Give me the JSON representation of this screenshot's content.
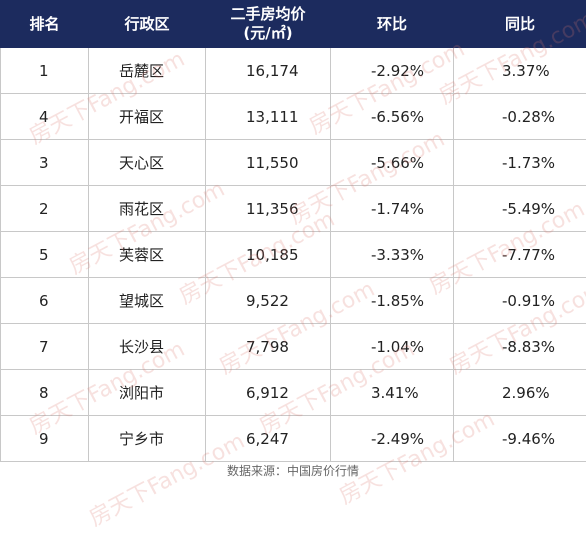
{
  "table": {
    "header": [
      "排名",
      "行政区",
      "二手房均价",
      "环比",
      "同比"
    ],
    "header_unit": "(元/㎡)",
    "rows": [
      [
        "1",
        "岳麓区",
        "16,174",
        "-2.92%",
        "3.37%"
      ],
      [
        "4",
        "开福区",
        "13,111",
        "-6.56%",
        "-0.28%"
      ],
      [
        "3",
        "天心区",
        "11,550",
        "-5.66%",
        "-1.73%"
      ],
      [
        "2",
        "雨花区",
        "11,356",
        "-1.74%",
        "-5.49%"
      ],
      [
        "5",
        "芙蓉区",
        "10,185",
        "-3.33%",
        "-7.77%"
      ],
      [
        "6",
        "望城区",
        "9,522",
        "-1.85%",
        "-0.91%"
      ],
      [
        "7",
        "长沙县",
        "7,798",
        "-1.04%",
        "-8.83%"
      ],
      [
        "8",
        "浏阳市",
        "6,912",
        "3.41%",
        "2.96%"
      ],
      [
        "9",
        "宁乡市",
        "6,247",
        "-2.49%",
        "-9.46%"
      ]
    ]
  },
  "footer": {
    "source": "数据来源：中国房价行情"
  },
  "watermark": "房天下Fang.com"
}
